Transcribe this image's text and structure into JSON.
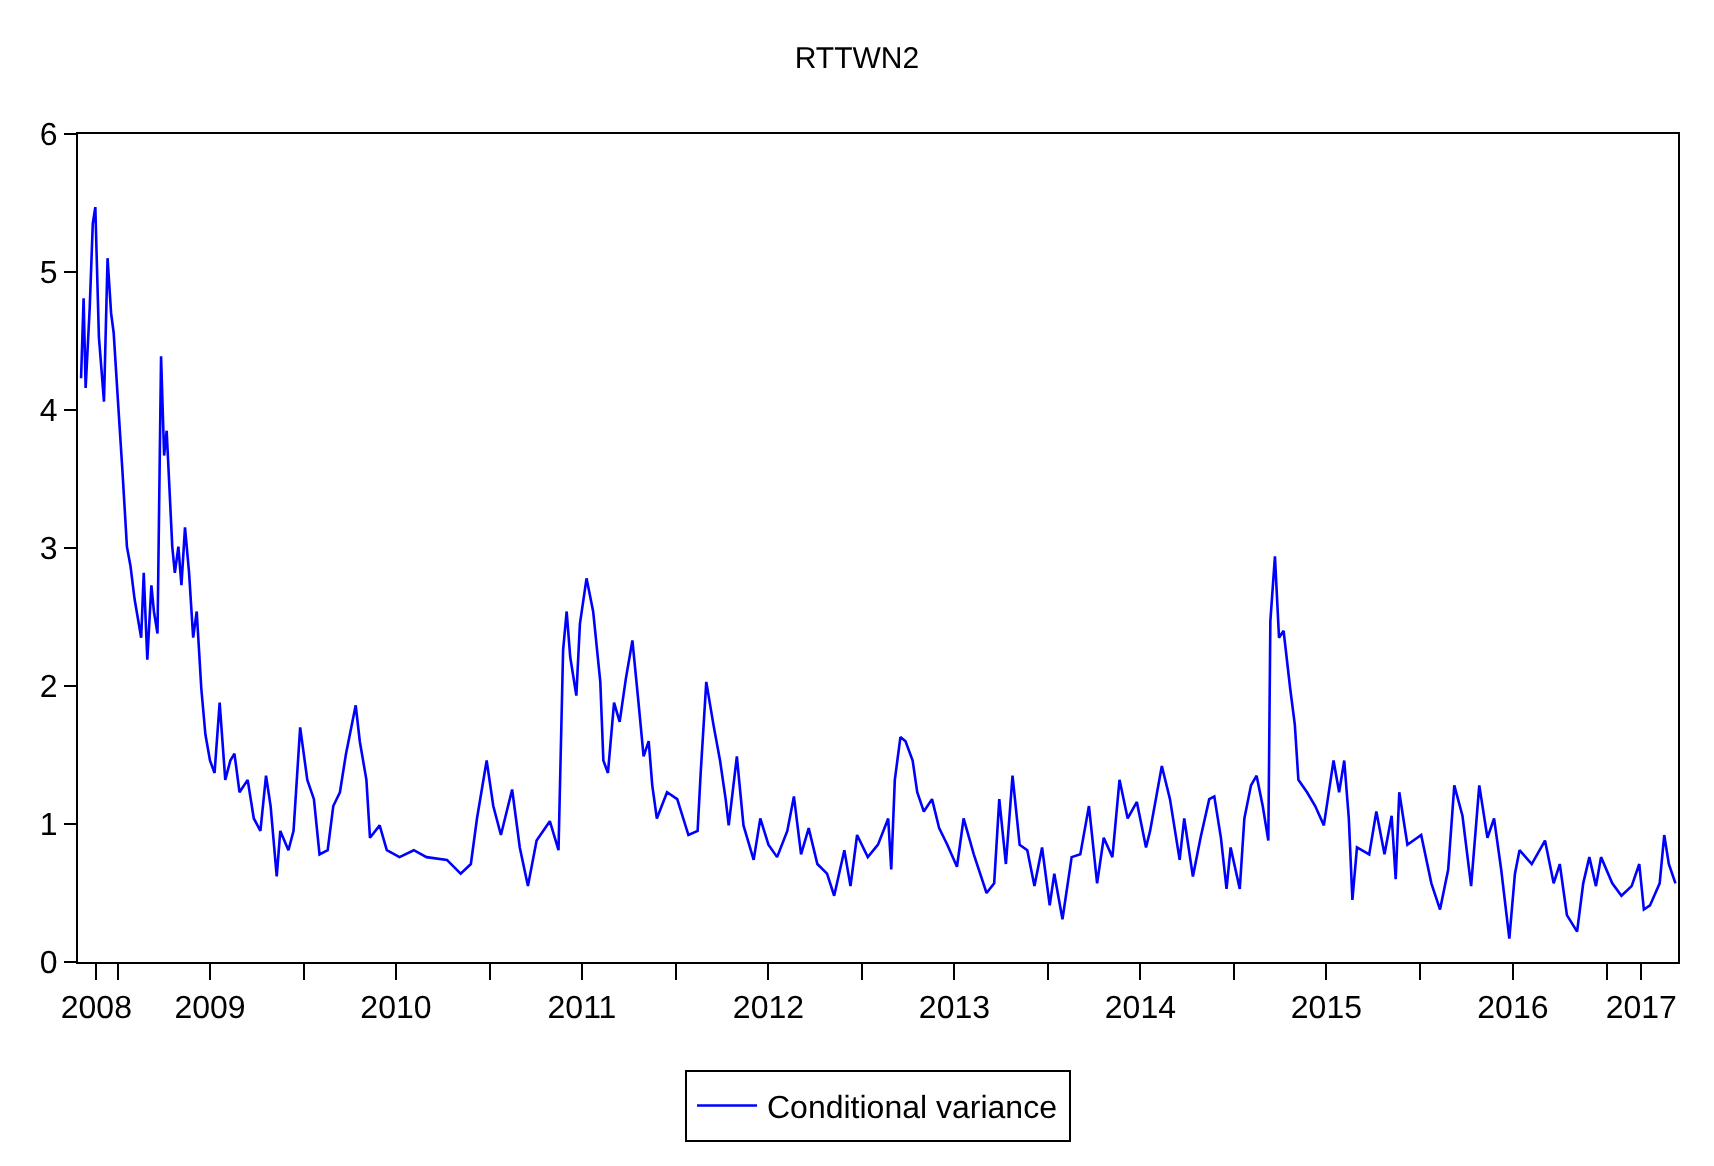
{
  "chart_data": {
    "type": "line",
    "title": "RTTWN2",
    "x": [
      "2008-10-21",
      "2008-10-26",
      "2008-10-30",
      "2008-11-07",
      "2008-11-13",
      "2008-11-18",
      "2008-11-25",
      "2008-12-05",
      "2008-12-12",
      "2008-12-19",
      "2008-12-24",
      "2009-01-01",
      "2009-01-10",
      "2009-01-19",
      "2009-01-26",
      "2009-02-03",
      "2009-02-16",
      "2009-02-21",
      "2009-02-28",
      "2009-03-08",
      "2009-03-13",
      "2009-03-20",
      "2009-03-27",
      "2009-04-02",
      "2009-04-07",
      "2009-04-18",
      "2009-04-23",
      "2009-04-30",
      "2009-05-06",
      "2009-05-13",
      "2009-05-21",
      "2009-05-29",
      "2009-06-05",
      "2009-06-14",
      "2009-06-22",
      "2009-07-01",
      "2009-07-10",
      "2009-07-20",
      "2009-07-31",
      "2009-08-10",
      "2009-08-18",
      "2009-08-28",
      "2009-09-13",
      "2009-09-25",
      "2009-10-08",
      "2009-10-19",
      "2009-10-28",
      "2009-11-09",
      "2009-11-16",
      "2009-12-02",
      "2009-12-12",
      "2009-12-25",
      "2010-01-08",
      "2010-01-21",
      "2010-02-01",
      "2010-02-17",
      "2010-02-28",
      "2010-03-13",
      "2010-03-25",
      "2010-04-13",
      "2010-04-21",
      "2010-05-04",
      "2010-05-11",
      "2010-05-30",
      "2010-06-13",
      "2010-07-08",
      "2010-08-05",
      "2010-08-30",
      "2010-10-09",
      "2010-11-05",
      "2010-11-25",
      "2010-12-07",
      "2010-12-26",
      "2011-01-08",
      "2011-01-23",
      "2011-02-14",
      "2011-03-01",
      "2011-03-17",
      "2011-04-03",
      "2011-04-29",
      "2011-05-16",
      "2011-05-25",
      "2011-06-01",
      "2011-06-08",
      "2011-06-20",
      "2011-06-27",
      "2011-07-10",
      "2011-07-23",
      "2011-08-06",
      "2011-08-12",
      "2011-08-21",
      "2011-09-02",
      "2011-09-13",
      "2011-09-25",
      "2011-10-08",
      "2011-10-20",
      "2011-10-30",
      "2011-11-09",
      "2011-11-16",
      "2011-11-25",
      "2011-12-15",
      "2012-01-04",
      "2012-01-26",
      "2012-02-13",
      "2012-02-19",
      "2012-03-01",
      "2012-03-15",
      "2012-03-28",
      "2012-04-08",
      "2012-04-14",
      "2012-04-30",
      "2012-05-13",
      "2012-06-02",
      "2012-06-15",
      "2012-07-01",
      "2012-07-18",
      "2012-08-07",
      "2012-08-20",
      "2012-09-03",
      "2012-09-18",
      "2012-10-05",
      "2012-10-24",
      "2012-11-07",
      "2012-11-27",
      "2012-12-09",
      "2012-12-22",
      "2013-01-12",
      "2013-02-01",
      "2013-02-21",
      "2013-02-27",
      "2013-03-06",
      "2013-03-17",
      "2013-03-27",
      "2013-04-10",
      "2013-04-19",
      "2013-05-02",
      "2013-05-18",
      "2013-06-01",
      "2013-06-17",
      "2013-07-06",
      "2013-07-19",
      "2013-08-08",
      "2013-09-02",
      "2013-09-17",
      "2013-09-27",
      "2013-10-10",
      "2013-10-23",
      "2013-11-06",
      "2013-11-21",
      "2013-12-05",
      "2013-12-20",
      "2014-01-04",
      "2014-01-13",
      "2014-01-29",
      "2014-02-16",
      "2014-03-05",
      "2014-03-22",
      "2014-04-07",
      "2014-04-20",
      "2014-05-07",
      "2014-05-21",
      "2014-06-06",
      "2014-06-24",
      "2014-07-12",
      "2014-07-20",
      "2014-08-12",
      "2014-08-28",
      "2014-09-16",
      "2014-09-25",
      "2014-10-12",
      "2014-10-27",
      "2014-11-13",
      "2014-11-23",
      "2014-12-06",
      "2014-12-17",
      "2014-12-25",
      "2015-01-12",
      "2015-01-21",
      "2015-02-03",
      "2015-02-14",
      "2015-02-26",
      "2015-03-09",
      "2015-03-13",
      "2015-03-22",
      "2015-03-30",
      "2015-04-08",
      "2015-04-21",
      "2015-04-30",
      "2015-05-07",
      "2015-05-24",
      "2015-06-09",
      "2015-06-26",
      "2015-07-15",
      "2015-07-26",
      "2015-08-05",
      "2015-08-14",
      "2015-08-21",
      "2015-08-30",
      "2015-09-23",
      "2015-10-07",
      "2015-10-23",
      "2015-11-06",
      "2015-11-14",
      "2015-11-21",
      "2015-12-07",
      "2016-01-03",
      "2016-01-23",
      "2016-02-09",
      "2016-02-25",
      "2016-03-08",
      "2016-03-24",
      "2016-04-10",
      "2016-04-26",
      "2016-05-12",
      "2016-05-25",
      "2016-06-08",
      "2016-06-24",
      "2016-07-05",
      "2016-07-14",
      "2016-08-07",
      "2016-09-02",
      "2016-09-19",
      "2016-10-01",
      "2016-10-15",
      "2016-11-04",
      "2016-11-16",
      "2016-11-28",
      "2016-12-11",
      "2016-12-21",
      "2017-01-12",
      "2017-01-30",
      "2017-02-19",
      "2017-03-06",
      "2017-03-15",
      "2017-03-27",
      "2017-04-15",
      "2017-04-24",
      "2017-05-03",
      "2017-05-16"
    ],
    "series": [
      {
        "name": "Conditional variance",
        "color": "#0000ff",
        "values": [
          4.23,
          4.81,
          4.16,
          4.74,
          5.35,
          5.47,
          4.53,
          4.06,
          5.1,
          4.7,
          4.56,
          4.09,
          3.57,
          3.01,
          2.87,
          2.63,
          2.35,
          2.82,
          2.19,
          2.73,
          2.54,
          2.38,
          4.39,
          3.67,
          3.85,
          3.01,
          2.82,
          3.01,
          2.73,
          3.15,
          2.82,
          2.35,
          2.54,
          1.98,
          1.65,
          1.46,
          1.37,
          1.88,
          1.32,
          1.46,
          1.51,
          1.23,
          1.32,
          1.04,
          0.95,
          1.35,
          1.13,
          0.62,
          0.95,
          0.81,
          0.95,
          1.7,
          1.32,
          1.18,
          0.78,
          0.81,
          1.13,
          1.23,
          1.51,
          1.86,
          1.6,
          1.32,
          0.9,
          0.99,
          0.81,
          0.76,
          0.81,
          0.76,
          0.74,
          0.64,
          0.71,
          1.04,
          1.46,
          1.13,
          0.92,
          1.25,
          0.83,
          0.55,
          0.88,
          1.02,
          0.81,
          2.26,
          2.54,
          2.21,
          1.93,
          2.45,
          2.78,
          2.54,
          2.03,
          1.46,
          1.37,
          1.88,
          1.74,
          2.05,
          2.33,
          1.88,
          1.49,
          1.6,
          1.28,
          1.04,
          1.23,
          1.18,
          0.92,
          0.95,
          1.37,
          2.03,
          1.72,
          1.46,
          1.18,
          0.99,
          1.49,
          0.99,
          0.74,
          1.04,
          0.85,
          0.76,
          0.95,
          1.2,
          0.78,
          0.97,
          0.71,
          0.64,
          0.48,
          0.81,
          0.55,
          0.92,
          0.76,
          0.85,
          1.04,
          0.67,
          1.32,
          1.63,
          1.6,
          1.46,
          1.23,
          1.09,
          1.18,
          0.97,
          0.85,
          0.69,
          1.04,
          0.78,
          0.5,
          0.57,
          1.18,
          0.71,
          1.35,
          0.85,
          0.81,
          0.55,
          0.83,
          0.41,
          0.64,
          0.31,
          0.76,
          0.78,
          1.13,
          0.57,
          0.9,
          0.76,
          1.32,
          1.04,
          1.16,
          0.83,
          0.95,
          1.42,
          1.18,
          0.74,
          1.04,
          0.62,
          0.9,
          1.18,
          1.2,
          0.9,
          0.53,
          0.83,
          0.53,
          1.04,
          1.28,
          1.35,
          1.13,
          0.88,
          2.47,
          2.94,
          2.35,
          2.4,
          1.98,
          1.72,
          1.32,
          1.23,
          1.13,
          0.99,
          1.46,
          1.23,
          1.46,
          1.04,
          0.45,
          0.83,
          0.78,
          1.09,
          0.78,
          1.06,
          0.6,
          1.23,
          0.85,
          0.92,
          0.57,
          0.38,
          0.67,
          1.28,
          1.06,
          0.55,
          1.28,
          0.9,
          1.04,
          0.67,
          0.17,
          0.64,
          0.81,
          0.71,
          0.88,
          0.57,
          0.71,
          0.34,
          0.22,
          0.57,
          0.76,
          0.55,
          0.76,
          0.57,
          0.48,
          0.55,
          0.71,
          0.38,
          0.41,
          0.57,
          0.92,
          0.71,
          0.57
        ]
      }
    ],
    "xlim": [
      "2008-10-15",
      "2017-05-21"
    ],
    "xticks": [
      {
        "value": "2008-11-20",
        "label": "2008"
      },
      {
        "value": "2009-01-01",
        "label": null
      },
      {
        "value": "2009-07-01",
        "label": "2009"
      },
      {
        "value": "2010-01-01",
        "label": null
      },
      {
        "value": "2010-07-01",
        "label": "2010"
      },
      {
        "value": "2011-01-01",
        "label": null
      },
      {
        "value": "2011-07-01",
        "label": "2011"
      },
      {
        "value": "2012-01-01",
        "label": null
      },
      {
        "value": "2012-07-01",
        "label": "2012"
      },
      {
        "value": "2013-01-01",
        "label": null
      },
      {
        "value": "2013-07-01",
        "label": "2013"
      },
      {
        "value": "2014-01-01",
        "label": null
      },
      {
        "value": "2014-07-01",
        "label": "2014"
      },
      {
        "value": "2015-01-01",
        "label": null
      },
      {
        "value": "2015-07-01",
        "label": "2015"
      },
      {
        "value": "2016-01-01",
        "label": null
      },
      {
        "value": "2016-07-01",
        "label": "2016"
      },
      {
        "value": "2017-01-01",
        "label": null
      },
      {
        "value": "2017-03-10",
        "label": "2017"
      }
    ],
    "ylim": [
      0,
      6
    ],
    "yticks": [
      0,
      1,
      2,
      3,
      4,
      5,
      6
    ],
    "grid": false,
    "legend": "bottom",
    "line_style": "solid"
  }
}
